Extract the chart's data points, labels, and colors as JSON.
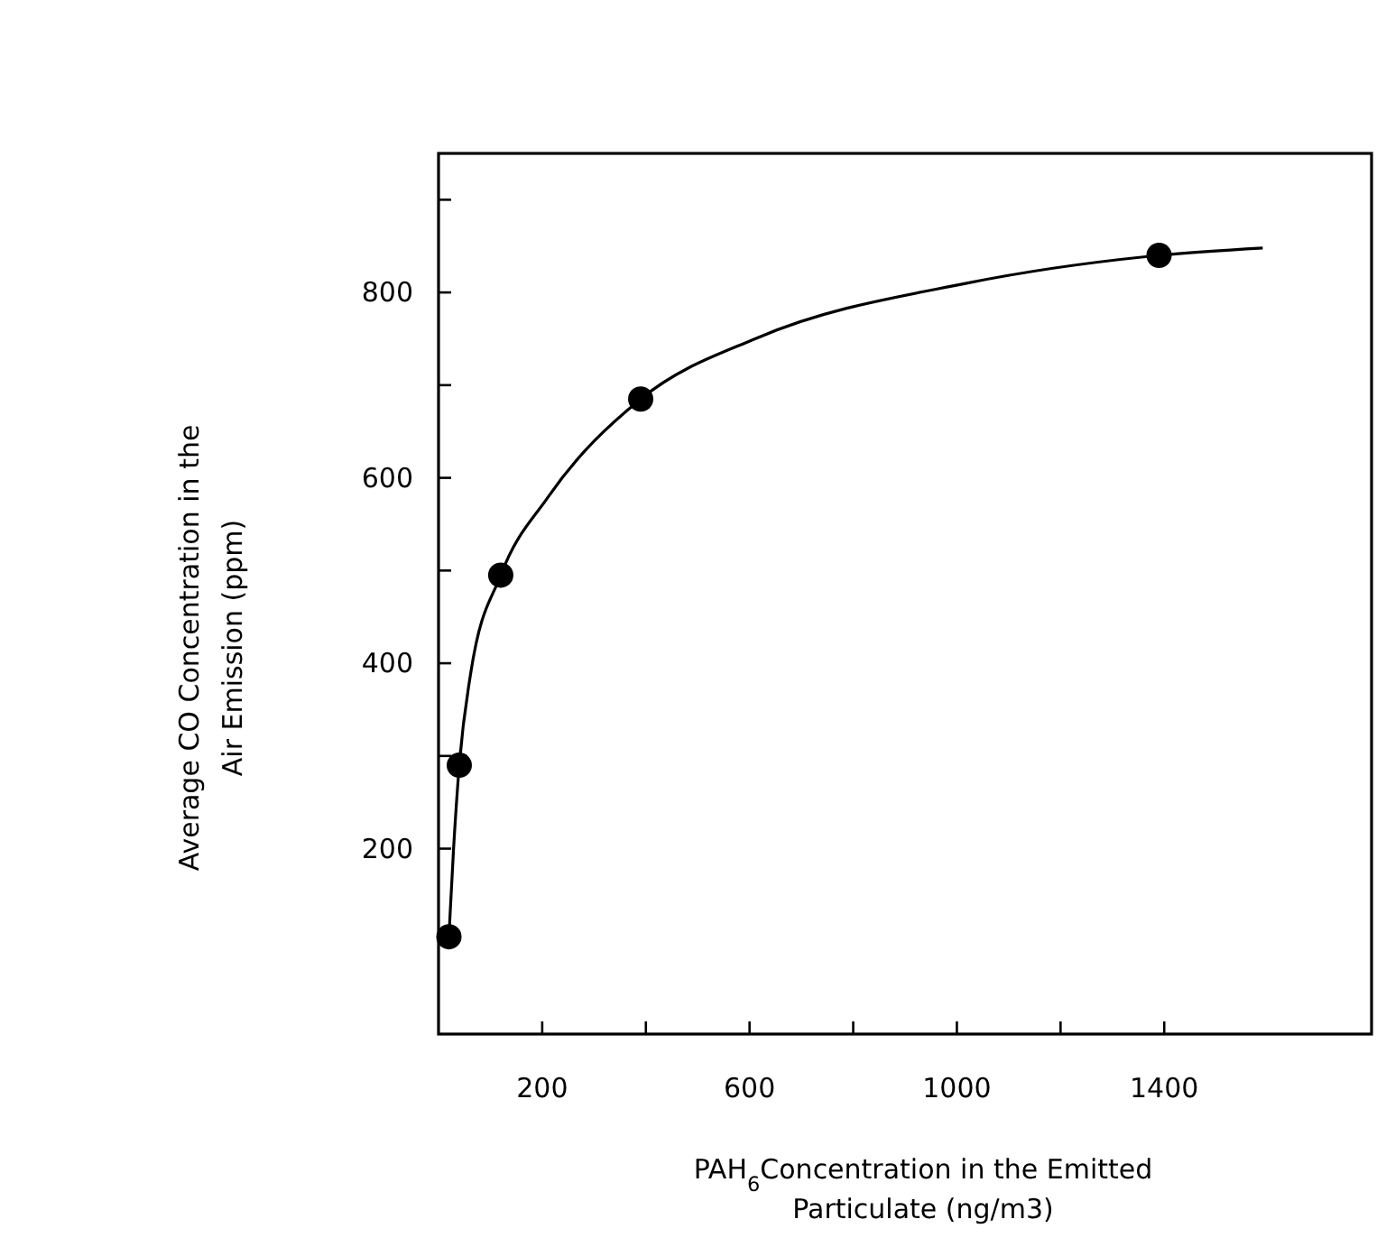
{
  "chart_data": {
    "type": "scatter",
    "xlabel": "PAH$_{6}$Concentration in the Emitted\nParticulate (ng/m3)",
    "ylabel": "Average CO Concentration in the\nAir Emission (ppm)",
    "xlim": [
      0,
      1800
    ],
    "ylim": [
      0,
      950
    ],
    "xticks": [
      200,
      {
        "value": 400,
        "label": null
      },
      600,
      {
        "value": 800,
        "label": null
      },
      1000,
      {
        "value": 1200,
        "label": null
      },
      1400
    ],
    "yticks": [
      200,
      {
        "value": 300,
        "label": null
      },
      400,
      {
        "value": 500,
        "label": null
      },
      600,
      {
        "value": 700,
        "label": null
      },
      800,
      {
        "value": 900,
        "label": null
      }
    ],
    "grid": false,
    "series": [
      {
        "color": "#000000",
        "marker": "circle",
        "x": [
          20,
          40,
          120,
          390,
          1390
        ],
        "values": [
          105,
          290,
          495,
          685,
          840
        ]
      },
      {
        "type": "line",
        "color": "#000000",
        "marker": "none",
        "line_style": "solid",
        "x": [
          20,
          29,
          40,
          62,
          120,
          211,
          390,
          615,
          1019,
          1390,
          1590
        ],
        "values": [
          105,
          200,
          290,
          389,
          495,
          579,
          685,
          751,
          810,
          840,
          848
        ]
      }
    ]
  }
}
